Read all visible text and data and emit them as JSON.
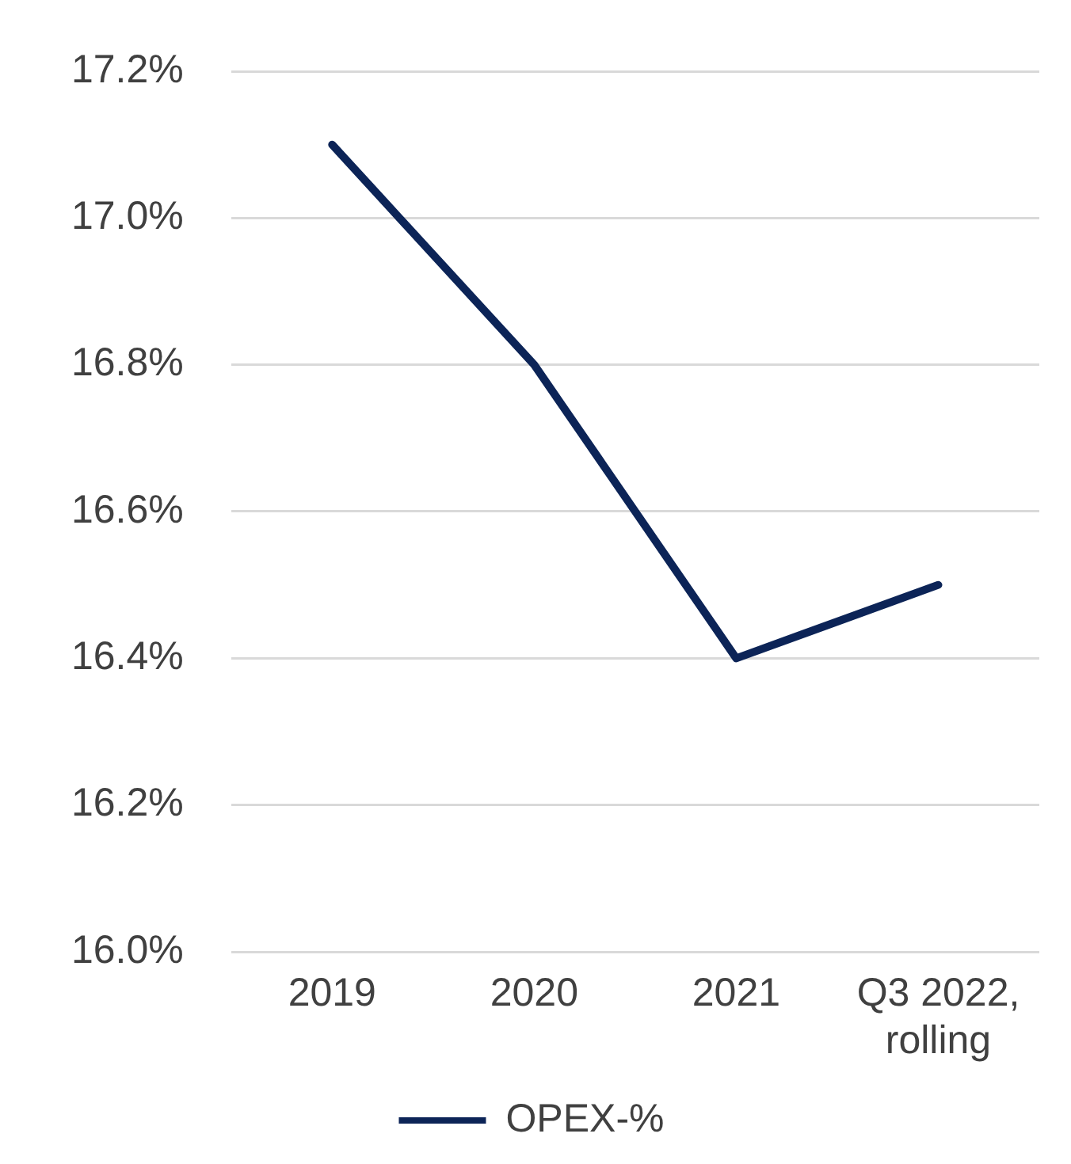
{
  "chart_data": {
    "type": "line",
    "categories": [
      "2019",
      "2020",
      "2021",
      "Q3 2022, rolling"
    ],
    "series": [
      {
        "name": "OPEX-%",
        "color": "#0c2457",
        "values": [
          17.1,
          16.8,
          16.4,
          16.5
        ]
      }
    ],
    "ylim": [
      16.0,
      17.2
    ],
    "yticks": [
      {
        "value": 16.0,
        "label": "16.0%"
      },
      {
        "value": 16.2,
        "label": "16.2%"
      },
      {
        "value": 16.4,
        "label": "16.4%"
      },
      {
        "value": 16.6,
        "label": "16.6%"
      },
      {
        "value": 16.8,
        "label": "16.8%"
      },
      {
        "value": 17.0,
        "label": "17.0%"
      },
      {
        "value": 17.2,
        "label": "17.2%"
      }
    ],
    "grid": "y",
    "legend": "bottom",
    "marker": "none",
    "line_style": "solid"
  }
}
